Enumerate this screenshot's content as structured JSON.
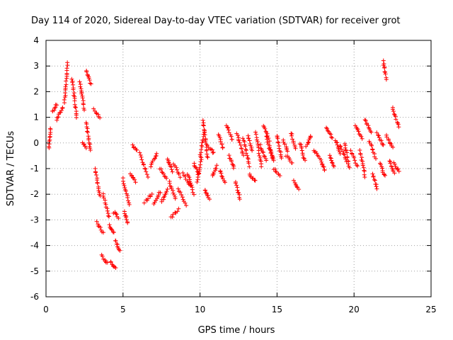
{
  "chart_data": {
    "type": "scatter",
    "title": "Day 114 of 2020, Sidereal Day-to-day VTEC variation (SDTVAR) for receiver grot",
    "xlabel": "GPS time / hours",
    "ylabel": "SDTVAR / TECUs",
    "xlim": [
      0,
      25
    ],
    "ylim": [
      -6,
      4
    ],
    "xticks": [
      "0",
      "5",
      "10",
      "15",
      "20",
      "25"
    ],
    "yticks": [
      "-6",
      "-5",
      "-4",
      "-3",
      "-2",
      "-1",
      "0",
      "1",
      "2",
      "3",
      "4"
    ],
    "grid": true,
    "marker": "plus",
    "color": "#ff0000",
    "segments": [
      [
        0.2,
        0.3,
        -0.2,
        0.6
      ],
      [
        0.4,
        0.7,
        1.2,
        1.5
      ],
      [
        0.7,
        1.1,
        0.9,
        1.4
      ],
      [
        1.2,
        1.4,
        1.6,
        3.1
      ],
      [
        1.7,
        2.0,
        2.5,
        1.0
      ],
      [
        2.2,
        2.5,
        2.4,
        1.3
      ],
      [
        2.4,
        2.6,
        0.0,
        -0.2
      ],
      [
        2.6,
        2.9,
        2.8,
        2.3
      ],
      [
        2.6,
        2.9,
        0.8,
        -0.3
      ],
      [
        3.1,
        3.5,
        1.3,
        1.0
      ],
      [
        3.2,
        3.5,
        -1.0,
        -2.1
      ],
      [
        3.3,
        3.7,
        -3.1,
        -3.5
      ],
      [
        3.7,
        4.1,
        -2.0,
        -2.9
      ],
      [
        3.6,
        4.0,
        -4.4,
        -4.7
      ],
      [
        4.1,
        4.4,
        -3.2,
        -3.5
      ],
      [
        4.2,
        4.5,
        -4.6,
        -4.9
      ],
      [
        4.4,
        4.7,
        -2.7,
        -2.9
      ],
      [
        4.5,
        4.8,
        -3.8,
        -4.2
      ],
      [
        5.0,
        5.4,
        -1.4,
        -2.4
      ],
      [
        5.1,
        5.3,
        -2.7,
        -3.1
      ],
      [
        5.5,
        5.8,
        -1.2,
        -1.5
      ],
      [
        5.6,
        5.9,
        -0.1,
        -0.3
      ],
      [
        6.1,
        6.6,
        -0.4,
        -1.3
      ],
      [
        6.4,
        6.9,
        -2.3,
        -2.0
      ],
      [
        6.8,
        7.2,
        -0.9,
        -0.4
      ],
      [
        7.0,
        7.4,
        -2.4,
        -1.9
      ],
      [
        7.4,
        7.8,
        -1.0,
        -1.4
      ],
      [
        7.5,
        7.9,
        -2.3,
        -1.8
      ],
      [
        7.9,
        8.2,
        -0.6,
        -1.1
      ],
      [
        8.0,
        8.4,
        -1.5,
        -2.2
      ],
      [
        8.1,
        8.6,
        -2.9,
        -2.6
      ],
      [
        8.3,
        8.7,
        -0.8,
        -1.3
      ],
      [
        8.6,
        9.1,
        -1.8,
        -2.4
      ],
      [
        8.9,
        9.4,
        -1.2,
        -1.7
      ],
      [
        9.2,
        9.6,
        -1.2,
        -2.0
      ],
      [
        9.6,
        9.9,
        -0.8,
        -1.2
      ],
      [
        9.8,
        10.1,
        -1.5,
        -0.6
      ],
      [
        10.0,
        10.3,
        -0.5,
        0.5
      ],
      [
        10.2,
        10.5,
        0.9,
        -0.6
      ],
      [
        10.3,
        10.6,
        -1.8,
        -2.2
      ],
      [
        10.5,
        10.9,
        -0.1,
        -0.4
      ],
      [
        10.8,
        11.1,
        -1.3,
        -0.9
      ],
      [
        11.2,
        11.5,
        0.3,
        -0.2
      ],
      [
        11.3,
        11.6,
        -1.1,
        -1.5
      ],
      [
        11.7,
        12.1,
        0.7,
        0.1
      ],
      [
        11.9,
        12.2,
        -0.5,
        -1.0
      ],
      [
        12.3,
        12.6,
        -1.5,
        -2.2
      ],
      [
        12.4,
        12.8,
        0.4,
        -0.5
      ],
      [
        12.8,
        13.2,
        0.2,
        -0.9
      ],
      [
        13.1,
        13.4,
        0.3,
        -0.3
      ],
      [
        13.2,
        13.6,
        -1.2,
        -1.5
      ],
      [
        13.6,
        14.0,
        0.4,
        -0.9
      ],
      [
        13.9,
        14.3,
        -0.1,
        -0.7
      ],
      [
        14.1,
        14.5,
        0.7,
        0.1
      ],
      [
        14.3,
        14.7,
        0.3,
        -0.6
      ],
      [
        14.8,
        15.2,
        -1.0,
        -1.3
      ],
      [
        15.0,
        15.3,
        0.3,
        -0.6
      ],
      [
        15.4,
        15.7,
        0.1,
        -0.3
      ],
      [
        15.6,
        16.0,
        -0.5,
        -0.8
      ],
      [
        15.9,
        16.2,
        0.4,
        -0.2
      ],
      [
        16.1,
        16.4,
        -1.5,
        -1.8
      ],
      [
        16.5,
        16.8,
        0.0,
        -0.7
      ],
      [
        16.9,
        17.2,
        -0.1,
        0.3
      ],
      [
        17.4,
        17.7,
        -0.3,
        -0.5
      ],
      [
        17.8,
        18.1,
        -0.6,
        -1.1
      ],
      [
        18.2,
        18.6,
        0.6,
        0.2
      ],
      [
        18.4,
        18.7,
        -0.5,
        -0.9
      ],
      [
        18.8,
        19.1,
        0.1,
        -0.4
      ],
      [
        19.1,
        19.5,
        -0.1,
        -0.7
      ],
      [
        19.4,
        19.7,
        0.0,
        -1.0
      ],
      [
        19.8,
        20.2,
        -0.3,
        -0.9
      ],
      [
        20.1,
        20.5,
        0.7,
        0.2
      ],
      [
        20.4,
        20.7,
        -0.3,
        -1.3
      ],
      [
        20.7,
        21.1,
        0.9,
        0.4
      ],
      [
        21.0,
        21.4,
        0.1,
        -0.6
      ],
      [
        21.2,
        21.5,
        -1.2,
        -1.8
      ],
      [
        21.5,
        21.9,
        0.4,
        -0.1
      ],
      [
        21.7,
        22.0,
        -0.8,
        -1.3
      ],
      [
        22.1,
        22.5,
        0.3,
        -0.2
      ],
      [
        22.3,
        22.6,
        -0.7,
        -1.2
      ],
      [
        22.5,
        22.9,
        1.4,
        0.6
      ],
      [
        22.6,
        22.9,
        -0.8,
        -1.1
      ],
      [
        21.9,
        22.1,
        3.2,
        2.5
      ],
      [
        14.5,
        14.8,
        -0.2,
        -0.7
      ]
    ]
  }
}
